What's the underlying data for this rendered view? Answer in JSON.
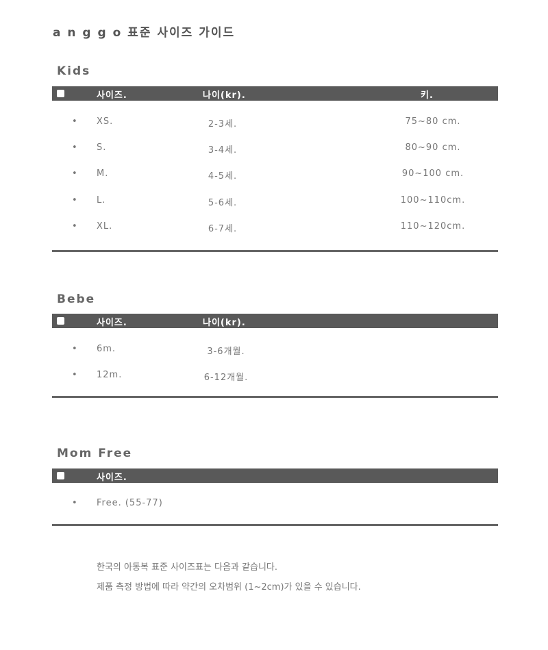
{
  "title": "a n g g o 표준 사이즈 가이드",
  "kids": {
    "name": "Kids",
    "headers": [
      "사이즈.",
      "나이(kr).",
      "키."
    ],
    "rows": [
      [
        "XS.",
        "2-3세.",
        "75~80 cm."
      ],
      [
        "S.",
        "3-4세.",
        "80~90 cm."
      ],
      [
        "M.",
        "4-5세.",
        "90~100 cm."
      ],
      [
        "L.",
        "5-6세.",
        "100~110cm."
      ],
      [
        "XL.",
        "6-7세.",
        "110~120cm."
      ]
    ]
  },
  "bebe": {
    "name": "Bebe",
    "headers": [
      "사이즈.",
      "나이(kr)."
    ],
    "rows": [
      [
        "6m.",
        "3-6개월."
      ],
      [
        "12m.",
        "6-12개월."
      ]
    ]
  },
  "mom": {
    "name": "Mom Free",
    "headers": [
      "사이즈."
    ],
    "rows": [
      [
        "Free. (55-77)"
      ]
    ]
  },
  "notes": [
    "한국의 아동복 표준 사이즈표는 다음과 같습니다.",
    "제품 측정 방법에 따라 약간의 오차범위 (1~2cm)가 있을 수 있습니다."
  ],
  "bullet": "•"
}
